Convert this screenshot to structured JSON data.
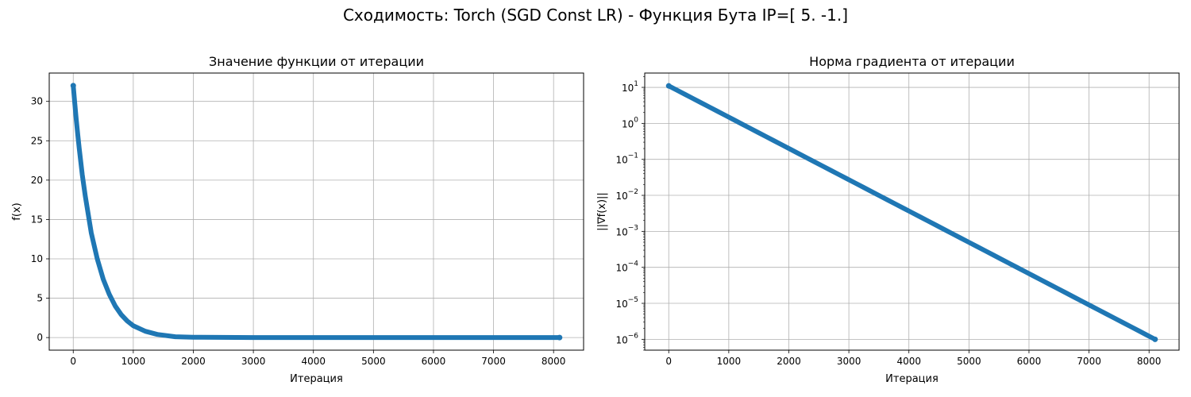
{
  "figure": {
    "suptitle": "Сходимость: Torch (SGD Const LR) - Функция Бута IP=[ 5. -1.]"
  },
  "colors": {
    "series": "#1f77b4",
    "grid": "#b0b0b0",
    "axes": "#000000"
  },
  "chart_data": [
    {
      "type": "scatter",
      "title": "Значение функции от итерации",
      "xlabel": "Итерация",
      "ylabel": "f(x)",
      "xscale": "linear",
      "yscale": "linear",
      "xlim": [
        -400,
        8500
      ],
      "ylim": [
        -1.6,
        33.6
      ],
      "xticks": [
        0,
        1000,
        2000,
        3000,
        4000,
        5000,
        6000,
        7000,
        8000
      ],
      "yticks": [
        0,
        5,
        10,
        15,
        20,
        25,
        30
      ],
      "grid": true,
      "series": [
        {
          "iterations": [
            0,
            8100
          ],
          "x": [
            0,
            25,
            50,
            75,
            100,
            150,
            200,
            300,
            400,
            500,
            600,
            700,
            800,
            900,
            1000,
            1200,
            1400,
            1700,
            2000,
            3000,
            4000,
            5000,
            6000,
            7000,
            8100
          ],
          "y": [
            32.0,
            29.8,
            27.7,
            25.8,
            24.0,
            20.7,
            18.0,
            13.3,
            10.0,
            7.4,
            5.5,
            4.0,
            2.9,
            2.1,
            1.5,
            0.8,
            0.4,
            0.1,
            0.04,
            0.0,
            0.0,
            0.0,
            0.0,
            0.0,
            0.0
          ]
        }
      ]
    },
    {
      "type": "scatter",
      "title": "Норма градиента от итерации",
      "xlabel": "Итерация",
      "ylabel": "||∇f(x)||",
      "xscale": "linear",
      "yscale": "log",
      "xlim": [
        -400,
        8500
      ],
      "ylim": [
        5e-07,
        25
      ],
      "xticks": [
        0,
        1000,
        2000,
        3000,
        4000,
        5000,
        6000,
        7000,
        8000
      ],
      "yticks": [
        1e-06,
        1e-05,
        0.0001,
        0.001,
        0.01,
        0.1,
        1,
        10
      ],
      "ytick_exponents": [
        "−6",
        "−5",
        "−4",
        "−3",
        "−2",
        "−1",
        "0",
        "1"
      ],
      "grid": true,
      "series": [
        {
          "iterations": [
            0,
            8100
          ],
          "y_start": 11.0,
          "y_end": 1e-06
        }
      ]
    }
  ]
}
